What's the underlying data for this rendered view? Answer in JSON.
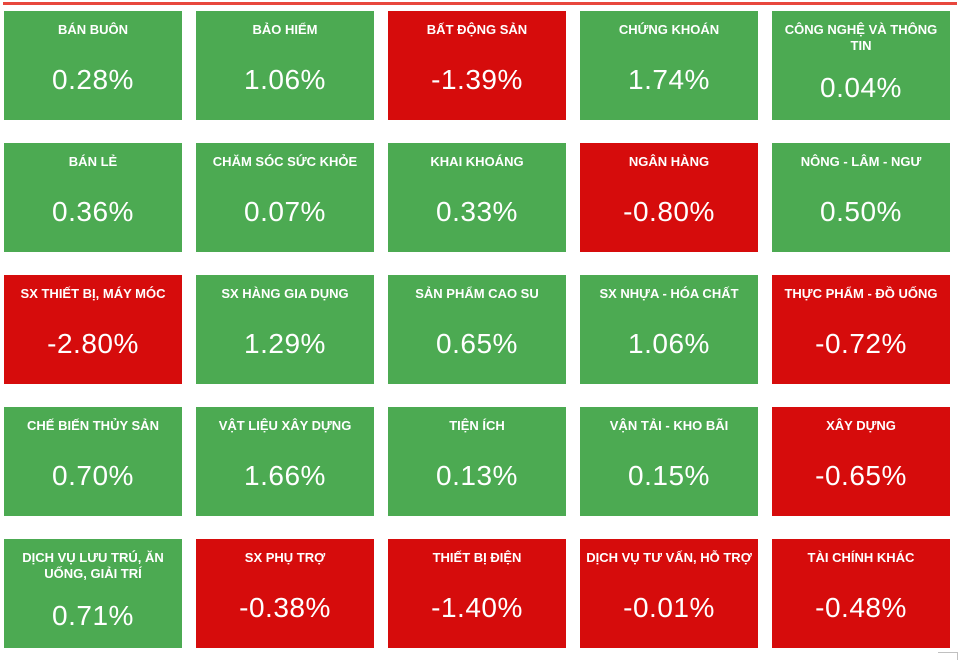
{
  "page": {
    "background": "#ffffff",
    "top_line_color": "#e8473d"
  },
  "colors": {
    "positive_tile": "#4caa52",
    "negative_tile": "#d60c0c",
    "tile_text": "#ffffff"
  },
  "heatmap": {
    "tiles": [
      {
        "label": "BÁN BUÔN",
        "value": "0.28%",
        "direction": "up"
      },
      {
        "label": "BẢO HIỂM",
        "value": "1.06%",
        "direction": "up"
      },
      {
        "label": "BẤT ĐỘNG SẢN",
        "value": "-1.39%",
        "direction": "down"
      },
      {
        "label": "CHỨNG KHOÁN",
        "value": "1.74%",
        "direction": "up"
      },
      {
        "label": "CÔNG NGHỆ VÀ THÔNG TIN",
        "value": "0.04%",
        "direction": "up"
      },
      {
        "label": "BÁN LẺ",
        "value": "0.36%",
        "direction": "up"
      },
      {
        "label": "CHĂM SÓC SỨC KHỎE",
        "value": "0.07%",
        "direction": "up"
      },
      {
        "label": "KHAI KHOÁNG",
        "value": "0.33%",
        "direction": "up"
      },
      {
        "label": "NGÂN HÀNG",
        "value": "-0.80%",
        "direction": "down"
      },
      {
        "label": "NÔNG - LÂM - NGƯ",
        "value": "0.50%",
        "direction": "up"
      },
      {
        "label": "SX THIẾT BỊ, MÁY MÓC",
        "value": "-2.80%",
        "direction": "down"
      },
      {
        "label": "SX HÀNG GIA DỤNG",
        "value": "1.29%",
        "direction": "up"
      },
      {
        "label": "SẢN PHẨM CAO SU",
        "value": "0.65%",
        "direction": "up"
      },
      {
        "label": "SX NHỰA - HÓA CHẤT",
        "value": "1.06%",
        "direction": "up"
      },
      {
        "label": "THỰC PHẨM - ĐỒ UỐNG",
        "value": "-0.72%",
        "direction": "down"
      },
      {
        "label": "CHẾ BIẾN THỦY SẢN",
        "value": "0.70%",
        "direction": "up"
      },
      {
        "label": "VẬT LIỆU XÂY DỰNG",
        "value": "1.66%",
        "direction": "up"
      },
      {
        "label": "TIỆN ÍCH",
        "value": "0.13%",
        "direction": "up"
      },
      {
        "label": "VẬN TẢI - KHO BÃI",
        "value": "0.15%",
        "direction": "up"
      },
      {
        "label": "XÂY DỰNG",
        "value": "-0.65%",
        "direction": "down"
      },
      {
        "label": "DỊCH VỤ LƯU TRÚ, ĂN UỐNG, GIẢI TRÍ",
        "value": "0.71%",
        "direction": "up"
      },
      {
        "label": "SX PHỤ TRỢ",
        "value": "-0.38%",
        "direction": "down"
      },
      {
        "label": "THIẾT BỊ ĐIỆN",
        "value": "-1.40%",
        "direction": "down"
      },
      {
        "label": "DỊCH VỤ TƯ VẤN, HỖ TRỢ",
        "value": "-0.01%",
        "direction": "down"
      },
      {
        "label": "TÀI CHÍNH KHÁC",
        "value": "-0.48%",
        "direction": "down"
      }
    ]
  },
  "chart_data": {
    "type": "heatmap",
    "title": "",
    "layout": {
      "rows": 5,
      "cols": 5,
      "order": "row-major"
    },
    "unit": "%",
    "categories": [
      "BÁN BUÔN",
      "BẢO HIỂM",
      "BẤT ĐỘNG SẢN",
      "CHỨNG KHOÁN",
      "CÔNG NGHỆ VÀ THÔNG TIN",
      "BÁN LẺ",
      "CHĂM SÓC SỨC KHỎE",
      "KHAI KHOÁNG",
      "NGÂN HÀNG",
      "NÔNG - LÂM - NGƯ",
      "SX THIẾT BỊ, MÁY MÓC",
      "SX HÀNG GIA DỤNG",
      "SẢN PHẨM CAO SU",
      "SX NHỰA - HÓA CHẤT",
      "THỰC PHẨM - ĐỒ UỐNG",
      "CHẾ BIẾN THỦY SẢN",
      "VẬT LIỆU XÂY DỰNG",
      "TIỆN ÍCH",
      "VẬN TẢI - KHO BÃI",
      "XÂY DỰNG",
      "DỊCH VỤ LƯU TRÚ, ĂN UỐNG, GIẢI TRÍ",
      "SX PHỤ TRỢ",
      "THIẾT BỊ ĐIỆN",
      "DỊCH VỤ TƯ VẤN, HỖ TRỢ",
      "TÀI CHÍNH KHÁC"
    ],
    "values": [
      0.28,
      1.06,
      -1.39,
      1.74,
      0.04,
      0.36,
      0.07,
      0.33,
      -0.8,
      0.5,
      -2.8,
      1.29,
      0.65,
      1.06,
      -0.72,
      0.7,
      1.66,
      0.13,
      0.15,
      -0.65,
      0.71,
      -0.38,
      -1.4,
      -0.01,
      -0.48
    ],
    "color_rule": "value >= 0 green (#4caa52), value < 0 red (#d60c0c)"
  }
}
